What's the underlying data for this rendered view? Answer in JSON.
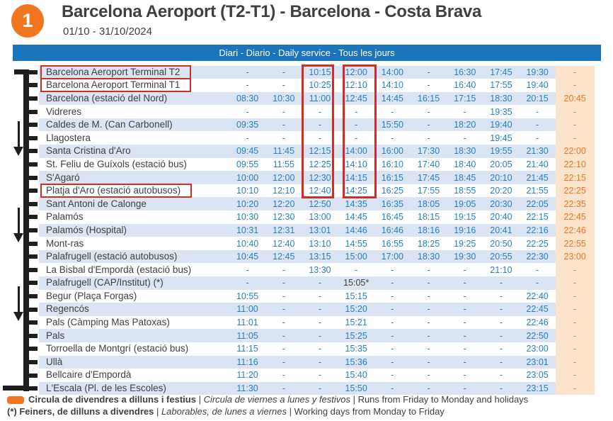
{
  "header": {
    "route_number": "1",
    "title": "Barcelona Aeroport (T2-T1) - Barcelona - Costa Brava",
    "date_range": "01/10 - 31/10/2024",
    "service_banner": "Diari - Diario - Daily service - Tous les jours"
  },
  "colors": {
    "orange": "#F2751F",
    "banner_blue": "#1B75BC",
    "time_blue": "#2880C4",
    "row_band_blue": "#DAE4F3",
    "last_column_bg": "#FBE3CC",
    "highlight_red": "#CF2E26",
    "text_dark": "#414042"
  },
  "timetable": {
    "rows": [
      {
        "stop": "Barcelona Aeroport Terminal T2",
        "boxed": true,
        "times": [
          "-",
          "-",
          "10:15",
          "12:00",
          "14:00",
          "-",
          "16:30",
          "17:45",
          "19:30",
          "-"
        ]
      },
      {
        "stop": "Barcelona Aeroport Terminal T1",
        "boxed": true,
        "times": [
          "-",
          "-",
          "10:25",
          "12:10",
          "14:10",
          "-",
          "16:40",
          "17:55",
          "19:40",
          "-"
        ]
      },
      {
        "stop": "Barcelona (estació del Nord)",
        "boxed": false,
        "times": [
          "08:30",
          "10:30",
          "11:00",
          "12:45",
          "14:45",
          "16:15",
          "17:15",
          "18:30",
          "20:15",
          "20:45"
        ]
      },
      {
        "stop": "Vidreres",
        "boxed": false,
        "times": [
          "-",
          "-",
          "-",
          "-",
          "-",
          "-",
          "-",
          "19:35",
          "-",
          "-"
        ]
      },
      {
        "stop": "Caldes de M. (Can Carbonell)",
        "boxed": false,
        "times": [
          "09:35",
          "-",
          "-",
          "-",
          "15:50",
          "-",
          "18:20",
          "19:40",
          "-",
          "-"
        ]
      },
      {
        "stop": "Llagostera",
        "boxed": false,
        "times": [
          "-",
          "-",
          "-",
          "-",
          "-",
          "-",
          "-",
          "19:45",
          "-",
          "-"
        ]
      },
      {
        "stop": "Santa Cristina d'Aro",
        "boxed": false,
        "times": [
          "09:45",
          "11:45",
          "12:15",
          "14:00",
          "16:00",
          "17:30",
          "18:30",
          "19:55",
          "21:30",
          "22:00"
        ]
      },
      {
        "stop": "St. Feliu de Guíxols (estació bus)",
        "boxed": false,
        "times": [
          "09:55",
          "11:55",
          "12:25",
          "14:10",
          "16:10",
          "17:40",
          "18:40",
          "20:05",
          "21:40",
          "22:10"
        ]
      },
      {
        "stop": "S'Agaró",
        "boxed": false,
        "times": [
          "10:00",
          "12:00",
          "12:30",
          "14:15",
          "16:15",
          "17:45",
          "18:45",
          "20:10",
          "21:45",
          "22:15"
        ]
      },
      {
        "stop": "Platja d'Aro (estació autobusos)",
        "boxed": true,
        "times": [
          "10:10",
          "12:10",
          "12:40",
          "14:25",
          "16:25",
          "17:55",
          "18:55",
          "20:20",
          "21:55",
          "22:25"
        ]
      },
      {
        "stop": "Sant Antoni de Calonge",
        "boxed": false,
        "times": [
          "10:20",
          "12:20",
          "12:50",
          "14:35",
          "16:35",
          "18:05",
          "19:05",
          "20:30",
          "22:05",
          "22:35"
        ]
      },
      {
        "stop": "Palamós",
        "boxed": false,
        "times": [
          "10:30",
          "12:30",
          "13:00",
          "14:45",
          "16:45",
          "18:15",
          "19:15",
          "20:40",
          "22:15",
          "22:45"
        ]
      },
      {
        "stop": "Palamós (Hospital)",
        "boxed": false,
        "times": [
          "10:31",
          "12:31",
          "13:01",
          "14:46",
          "16:46",
          "18:16",
          "19:16",
          "20:41",
          "22:16",
          "22:46"
        ]
      },
      {
        "stop": "Mont-ras",
        "boxed": false,
        "times": [
          "10:40",
          "12:40",
          "13:10",
          "14:55",
          "16:55",
          "18:25",
          "19:25",
          "20:50",
          "22:25",
          "22:55"
        ]
      },
      {
        "stop": "Palafrugell (estació autobusos)",
        "boxed": false,
        "times": [
          "10:45",
          "12:45",
          "13:15",
          "15:00",
          "17:00",
          "18:30",
          "19:30",
          "20:55",
          "22:30",
          "23:00"
        ]
      },
      {
        "stop": "La Bisbal d'Empordà (estació bus)",
        "boxed": false,
        "times": [
          "-",
          "-",
          "13:30",
          "-",
          "-",
          "-",
          "-",
          "21:10",
          "-",
          "-"
        ]
      },
      {
        "stop": "Palafrugell (CAP/Institut) (*)",
        "boxed": false,
        "times": [
          "-",
          "-",
          "-",
          "15:05*",
          "-",
          "-",
          "-",
          "-",
          "-",
          "-"
        ]
      },
      {
        "stop": "Begur (Plaça Forgas)",
        "boxed": false,
        "times": [
          "10:55",
          "-",
          "-",
          "15:15",
          "-",
          "-",
          "-",
          "-",
          "22:40",
          "-"
        ]
      },
      {
        "stop": "Regencós",
        "boxed": false,
        "times": [
          "11:00",
          "-",
          "-",
          "15:20",
          "-",
          "-",
          "-",
          "-",
          "22:45",
          "-"
        ]
      },
      {
        "stop": "Pals (Càmping Mas Patoxas)",
        "boxed": false,
        "times": [
          "11:01",
          "-",
          "-",
          "15:21",
          "-",
          "-",
          "-",
          "-",
          "22:46",
          "-"
        ]
      },
      {
        "stop": "Pals",
        "boxed": false,
        "times": [
          "11:05",
          "-",
          "-",
          "15:25",
          "-",
          "-",
          "-",
          "-",
          "22:50",
          "-"
        ]
      },
      {
        "stop": "Torroella de Montgrí (estació bus)",
        "boxed": false,
        "times": [
          "11:15",
          "-",
          "-",
          "15:35",
          "-",
          "-",
          "-",
          "-",
          "23:00",
          "-"
        ]
      },
      {
        "stop": "Ullà",
        "boxed": false,
        "times": [
          "11:16",
          "-",
          "-",
          "15:36",
          "-",
          "-",
          "-",
          "-",
          "23:01",
          "-"
        ]
      },
      {
        "stop": "Bellcaire d'Empordà",
        "boxed": false,
        "times": [
          "11:20",
          "-",
          "-",
          "15:40",
          "-",
          "-",
          "-",
          "-",
          "23:05",
          "-"
        ]
      },
      {
        "stop": "L'Escala (Pl. de les Escoles)",
        "boxed": false,
        "times": [
          "11:30",
          "-",
          "-",
          "15:50",
          "-",
          "-",
          "-",
          "-",
          "23:15",
          "-"
        ]
      }
    ]
  },
  "annotations": {
    "boxed_stops": [
      "Barcelona Aeroport Terminal T2",
      "Barcelona Aeroport Terminal T1",
      "Platja d'Aro (estació autobusos)"
    ],
    "boxed_departure_columns": [
      3,
      4
    ],
    "boxed_columns_span_rows": "Barcelona Aeroport Terminal T2 to Platja d'Aro (estació autobusos)",
    "orange_column_note": "last column runs Friday to Monday and holidays"
  },
  "legend": {
    "line1": {
      "marker": "orange-pill",
      "bold": "Circula de divendres a dilluns i festius",
      "sep": " | ",
      "italic": "Circula de viernes a lunes y festivos",
      "regular": "Runs from Friday to Monday and holidays"
    },
    "line2": {
      "bold": "(*) Feiners, de dilluns a divendres",
      "sep": " | ",
      "italic": "Laborables, de lunes a viernes",
      "regular": "Working days from Monday to Friday"
    }
  }
}
